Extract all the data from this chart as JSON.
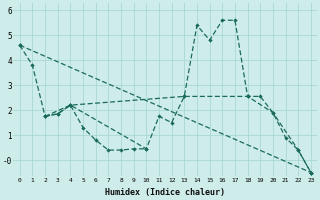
{
  "xlabel": "Humidex (Indice chaleur)",
  "background_color": "#ceecea",
  "grid_color": "#a8d8d4",
  "line_color": "#1a6b5a",
  "xlim": [
    -0.5,
    23.5
  ],
  "ylim": [
    -0.65,
    6.3
  ],
  "yticks": [
    0,
    1,
    2,
    3,
    4,
    5,
    6
  ],
  "ytick_labels": [
    "-0",
    "1",
    "2",
    "3",
    "4",
    "5",
    "6"
  ],
  "lines": [
    {
      "x": [
        0,
        1,
        2,
        3,
        4,
        5,
        6,
        7,
        8,
        9,
        10
      ],
      "y": [
        4.6,
        3.8,
        1.75,
        1.85,
        2.2,
        1.3,
        0.8,
        0.4,
        0.4,
        0.45,
        0.45
      ]
    },
    {
      "x": [
        2,
        3,
        4,
        10,
        11,
        12,
        13,
        14,
        15,
        16,
        17,
        18,
        19,
        20,
        21,
        22,
        23
      ],
      "y": [
        1.75,
        1.85,
        2.2,
        0.45,
        1.75,
        1.5,
        2.55,
        5.4,
        4.8,
        5.6,
        5.6,
        2.55,
        2.55,
        1.9,
        0.9,
        0.4,
        -0.5
      ]
    },
    {
      "x": [
        2,
        4,
        13,
        18,
        20,
        22,
        23
      ],
      "y": [
        1.75,
        2.2,
        2.55,
        2.55,
        1.9,
        0.4,
        -0.5
      ]
    },
    {
      "x": [
        0,
        23
      ],
      "y": [
        4.6,
        -0.5
      ]
    }
  ]
}
